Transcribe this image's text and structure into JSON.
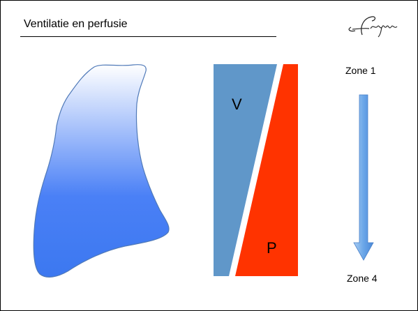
{
  "slide": {
    "title": "Ventilatie en perfusie",
    "logo_icon": "erasmus-signature-logo"
  },
  "diagram": {
    "lung_icon": "lung-outline-shape",
    "lung_gradient": [
      "#ffffff",
      "#4a80f6",
      "#3c78f0"
    ],
    "ventilation": {
      "label": "V",
      "color": "#6097c9"
    },
    "perfusion": {
      "label": "P",
      "color": "#ff3300"
    },
    "arrow_color": "#6aa6e8",
    "zones": {
      "top": "Zone 1",
      "bottom": "Zone 4"
    }
  }
}
